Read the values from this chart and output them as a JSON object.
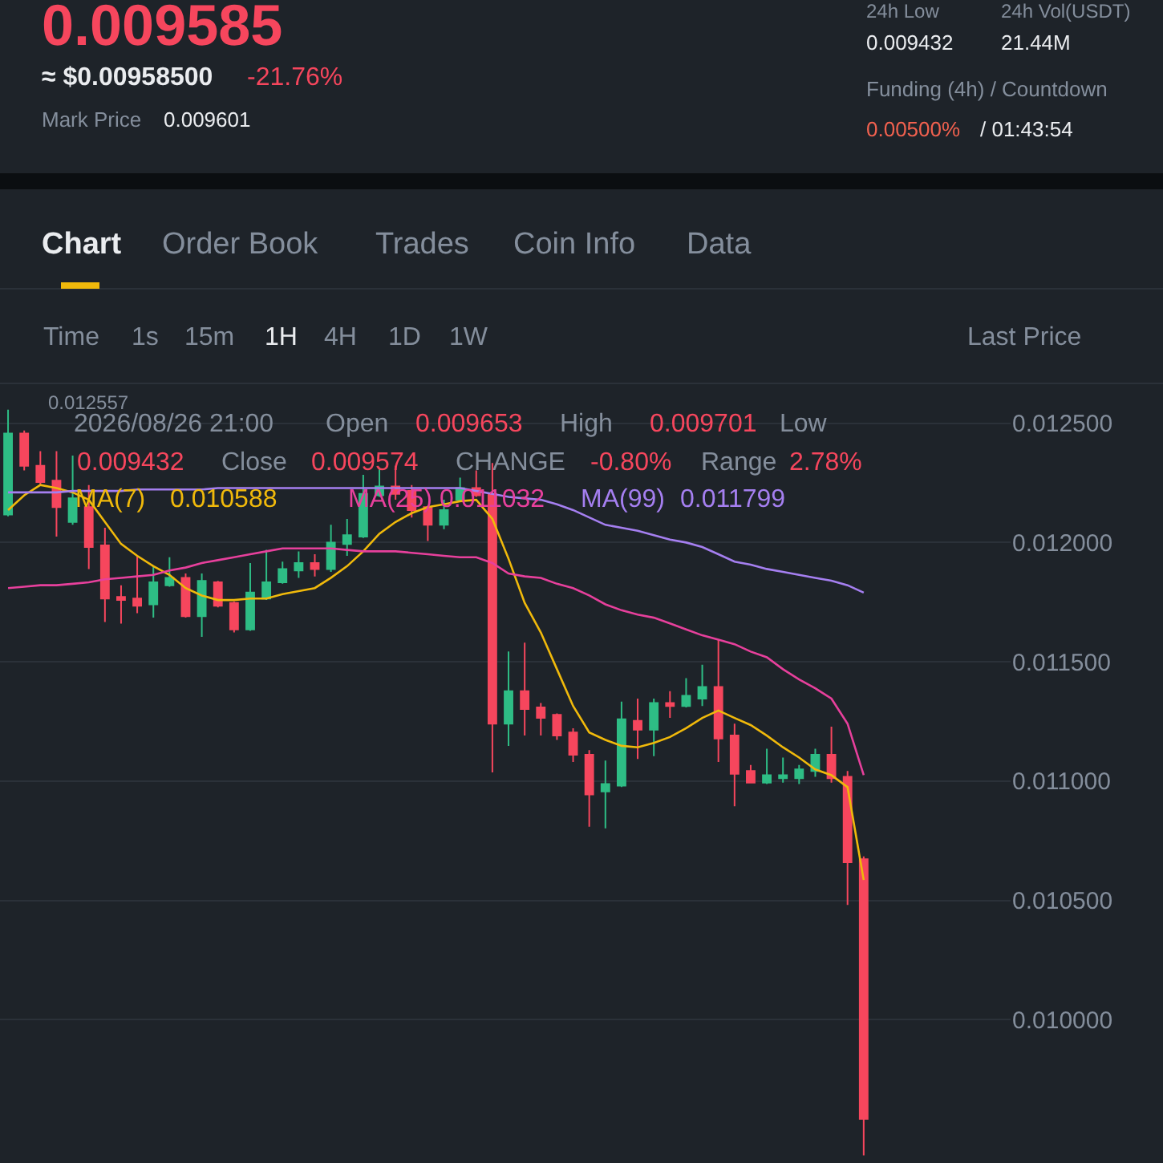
{
  "chart_data": {
    "type": "candlestick",
    "categories": [
      null,
      null,
      null,
      null,
      null,
      null,
      null,
      null,
      null,
      null,
      null,
      null,
      null,
      null,
      null,
      null,
      null,
      null,
      null,
      null,
      null,
      null,
      null,
      null,
      null,
      null,
      null,
      null,
      null,
      null,
      null,
      null,
      null,
      null,
      null,
      null,
      null,
      null,
      null,
      null,
      null,
      null,
      null,
      null,
      null,
      null,
      null,
      null,
      null,
      null,
      null,
      null,
      null,
      null
    ],
    "ohlc": [
      [
        0.012117,
        0.012557,
        0.01211,
        0.012457
      ],
      [
        0.012457,
        0.012469,
        0.012302,
        0.012321
      ],
      [
        0.012321,
        0.012383,
        0.012241,
        0.012253
      ],
      [
        0.012259,
        0.012383,
        0.012025,
        0.012148
      ],
      [
        0.012086,
        0.012364,
        0.012074,
        0.012185
      ],
      [
        0.012148,
        0.012241,
        0.011889,
        0.011981
      ],
      [
        0.011988,
        0.012062,
        0.011667,
        0.011765
      ],
      [
        0.011772,
        0.011821,
        0.01166,
        0.011759
      ],
      [
        0.011765,
        0.011944,
        0.011704,
        0.011735
      ],
      [
        0.011741,
        0.011901,
        0.011685,
        0.011833
      ],
      [
        0.011821,
        0.011938,
        0.011815,
        0.011852
      ],
      [
        0.011852,
        0.01187,
        0.011685,
        0.011691
      ],
      [
        0.011691,
        0.01187,
        0.011605,
        0.011839
      ],
      [
        0.011833,
        0.011839,
        0.011728,
        0.011735
      ],
      [
        0.011747,
        0.011753,
        0.011623,
        0.011636
      ],
      [
        0.011636,
        0.011914,
        0.01163,
        0.01179
      ],
      [
        0.011765,
        0.011969,
        0.011759,
        0.011833
      ],
      [
        0.011833,
        0.01192,
        0.011827,
        0.011889
      ],
      [
        0.011883,
        0.011963,
        0.011852,
        0.011914
      ],
      [
        0.011914,
        0.011951,
        0.011858,
        0.011889
      ],
      [
        0.011889,
        0.012074,
        0.011877,
        0.012
      ],
      [
        0.011994,
        0.012099,
        0.011944,
        0.012031
      ],
      [
        0.012025,
        0.012284,
        0.012019,
        0.012204
      ],
      [
        0.012198,
        0.012315,
        0.012191,
        0.012235
      ],
      [
        0.012235,
        0.012321,
        0.012179,
        0.012204
      ],
      [
        0.012216,
        0.012241,
        0.012105,
        0.012136
      ],
      [
        0.012148,
        0.012154,
        0.012006,
        0.012074
      ],
      [
        0.012074,
        0.012179,
        0.012056,
        0.012136
      ],
      [
        0.012179,
        0.012272,
        0.012173,
        0.012228
      ],
      [
        0.012228,
        0.012302,
        0.012191,
        0.012198
      ],
      [
        0.012204,
        0.012333,
        0.011037,
        0.011241
      ],
      [
        0.011241,
        0.011543,
        0.011148,
        0.011377
      ],
      [
        0.011377,
        0.01158,
        0.011191,
        0.011302
      ],
      [
        0.011309,
        0.011327,
        0.011191,
        0.011265
      ],
      [
        0.011278,
        0.011284,
        0.011173,
        0.011191
      ],
      [
        0.011204,
        0.011222,
        0.01108,
        0.011111
      ],
      [
        0.011111,
        0.01113,
        0.010809,
        0.010944
      ],
      [
        0.010957,
        0.011086,
        0.010802,
        0.010988
      ],
      [
        0.010981,
        0.011333,
        0.010975,
        0.011259
      ],
      [
        0.011253,
        0.011346,
        0.011093,
        0.011216
      ],
      [
        0.011216,
        0.011346,
        0.011105,
        0.011327
      ],
      [
        0.011327,
        0.011377,
        0.011265,
        0.011315
      ],
      [
        0.011315,
        0.011432,
        0.011309,
        0.011358
      ],
      [
        0.011346,
        0.011488,
        0.011315,
        0.011395
      ],
      [
        0.011395,
        0.011593,
        0.01108,
        0.011179
      ],
      [
        0.011191,
        0.011241,
        0.010895,
        0.011031
      ],
      [
        0.011043,
        0.011068,
        0.010994,
        0.010994
      ],
      [
        0.010994,
        0.011136,
        0.010988,
        0.011025
      ],
      [
        0.011012,
        0.011099,
        0.010994,
        0.011025
      ],
      [
        0.011012,
        0.011068,
        0.010988,
        0.011049
      ],
      [
        0.011043,
        0.011136,
        0.011018,
        0.011111
      ],
      [
        0.011111,
        0.011228,
        0.010994,
        0.011012
      ],
      [
        0.011018,
        0.011043,
        0.010481,
        0.01066
      ],
      [
        0.010673,
        0.010685,
        0.009432,
        0.009585
      ]
    ],
    "colors": [
      "#2ebd85",
      "#f6465d",
      "#f6465d",
      "#f6465d",
      "#2ebd85",
      "#f6465d",
      "#f6465d",
      "#f6465d",
      "#f6465d",
      "#2ebd85",
      "#2ebd85",
      "#f6465d",
      "#2ebd85",
      "#f6465d",
      "#f6465d",
      "#2ebd85",
      "#2ebd85",
      "#2ebd85",
      "#2ebd85",
      "#f6465d",
      "#2ebd85",
      "#2ebd85",
      "#2ebd85",
      "#2ebd85",
      "#f6465d",
      "#f6465d",
      "#f6465d",
      "#2ebd85",
      "#2ebd85",
      "#f6465d",
      "#f6465d",
      "#2ebd85",
      "#f6465d",
      "#f6465d",
      "#f6465d",
      "#f6465d",
      "#f6465d",
      "#2ebd85",
      "#2ebd85",
      "#f6465d",
      "#2ebd85",
      "#f6465d",
      "#2ebd85",
      "#2ebd85",
      "#f6465d",
      "#f6465d",
      "#f6465d",
      "#2ebd85",
      "#2ebd85",
      "#2ebd85",
      "#2ebd85",
      "#f6465d",
      "#f6465d",
      "#f6465d"
    ],
    "series": [
      {
        "name": "MA(7)",
        "type": "line",
        "color": "#f0b90b",
        "values": [
          0.012136,
          0.012198,
          0.012241,
          0.012228,
          0.01221,
          0.012179,
          0.012086,
          0.011994,
          0.011944,
          0.011901,
          0.011864,
          0.011809,
          0.011778,
          0.011759,
          0.011759,
          0.011765,
          0.011765,
          0.011784,
          0.011796,
          0.011809,
          0.011852,
          0.011901,
          0.011963,
          0.012037,
          0.012086,
          0.012123,
          0.012148,
          0.01216,
          0.012173,
          0.012179,
          0.012099,
          0.011932,
          0.011747,
          0.011623,
          0.011469,
          0.011315,
          0.011204,
          0.011173,
          0.011148,
          0.011142,
          0.01116,
          0.011185,
          0.011222,
          0.011265,
          0.011296,
          0.011265,
          0.011235,
          0.011191,
          0.011142,
          0.011099,
          0.011049,
          0.011025,
          0.010975,
          0.010586
        ]
      },
      {
        "name": "MA(25)",
        "type": "line",
        "color": "#e7409c",
        "values": [
          0.011809,
          0.011815,
          0.011821,
          0.011821,
          0.011827,
          0.011833,
          0.011846,
          0.011852,
          0.011858,
          0.011864,
          0.011883,
          0.011895,
          0.011914,
          0.011926,
          0.011938,
          0.011951,
          0.011963,
          0.011975,
          0.011975,
          0.011975,
          0.011975,
          0.011969,
          0.011963,
          0.011963,
          0.011963,
          0.011957,
          0.011951,
          0.011944,
          0.011938,
          0.011938,
          0.011914,
          0.01187,
          0.011858,
          0.011852,
          0.011827,
          0.011809,
          0.011778,
          0.011741,
          0.011716,
          0.011698,
          0.011685,
          0.011661,
          0.011636,
          0.011611,
          0.011593,
          0.011574,
          0.011543,
          0.011519,
          0.011469,
          0.011426,
          0.011389,
          0.011346,
          0.011241,
          0.011025
        ]
      },
      {
        "name": "MA(99)",
        "type": "line",
        "color": "#a57ff0",
        "values": [
          0.01221,
          0.01221,
          0.01221,
          0.01221,
          0.012216,
          0.012216,
          0.012216,
          0.012216,
          0.012222,
          0.012222,
          0.012222,
          0.012222,
          0.012222,
          0.012228,
          0.012228,
          0.012228,
          0.012228,
          0.012228,
          0.012228,
          0.012228,
          0.012228,
          0.012228,
          0.012228,
          0.012228,
          0.012228,
          0.012228,
          0.012228,
          0.012228,
          0.012228,
          0.012216,
          0.012204,
          0.012191,
          0.012185,
          0.012179,
          0.01216,
          0.012136,
          0.012105,
          0.012074,
          0.012062,
          0.012049,
          0.012031,
          0.012012,
          0.012,
          0.011981,
          0.011951,
          0.01192,
          0.011907,
          0.011889,
          0.011877,
          0.011864,
          0.011852,
          0.01184,
          0.011821,
          0.01179
        ]
      }
    ],
    "ylim": [
      0.0094,
      0.01266
    ],
    "yticks": [
      {
        "value": 0.0125,
        "label": "0.012500"
      },
      {
        "value": 0.012,
        "label": "0.012000"
      },
      {
        "value": 0.0115,
        "label": "0.011500"
      },
      {
        "value": 0.011,
        "label": "0.011000"
      },
      {
        "value": 0.0105,
        "label": "0.010500"
      },
      {
        "value": 0.01,
        "label": "0.010000"
      }
    ],
    "grid": "y",
    "annotations": [
      "0.009585",
      "≈ $0.00958500",
      "-21.76%",
      "Mark Price",
      "0.009601",
      "24h Low",
      "24h Vol(USDT)",
      "0.009432",
      "21.44M",
      "Funding (4h) / Countdown",
      "0.00500%",
      "/ 01:43:54",
      "Chart",
      "Order Book",
      "Trades",
      "Coin Info",
      "Data",
      "Time",
      "1s",
      "15m",
      "1H",
      "4H",
      "1D",
      "1W",
      "Last Price",
      "0.012557",
      "2026/08/26 21:00",
      "Open",
      "0.009653",
      "High",
      "0.009701",
      "Low",
      "0.009432",
      "Close",
      "0.009574",
      "CHANGE",
      "-0.80%",
      "Range",
      "2.78%",
      "0.010588",
      "0.011032",
      "0.011799"
    ]
  }
}
